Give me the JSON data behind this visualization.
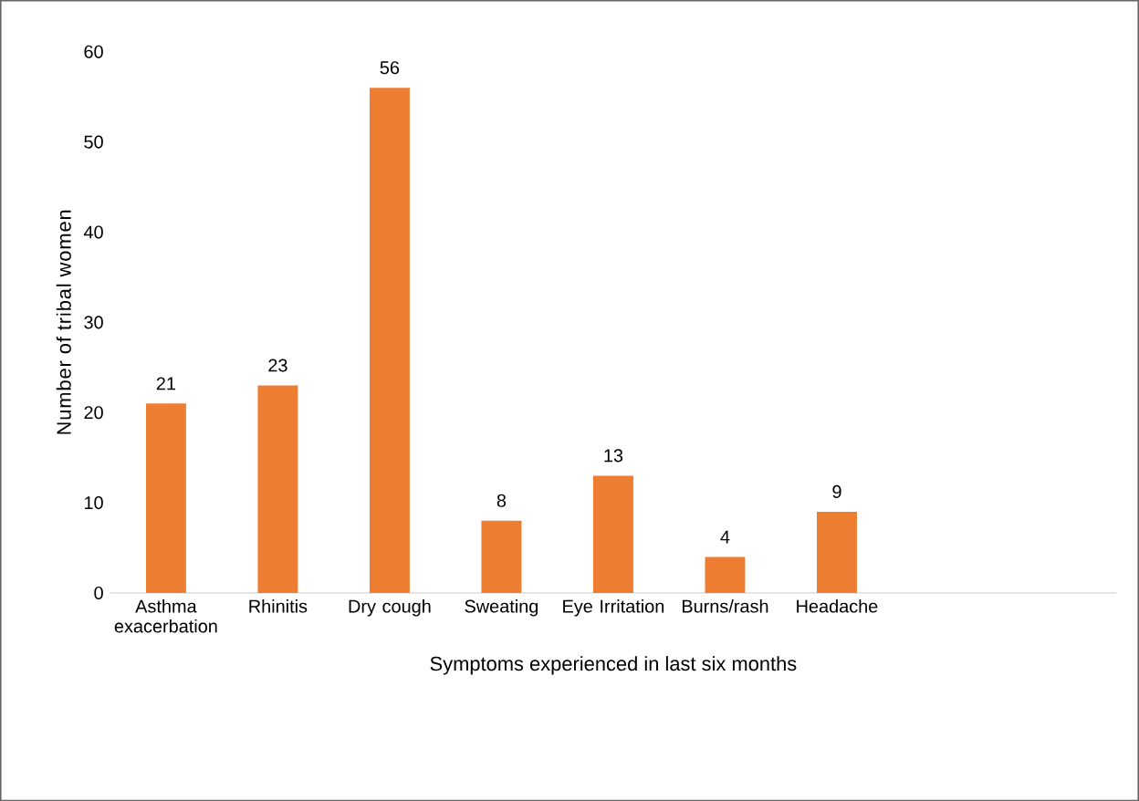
{
  "chart_data": {
    "type": "bar",
    "categories": [
      "Asthma exacerbation",
      "Rhinitis",
      "Dry cough",
      "Sweating",
      "Eye Irritation",
      "Burns/rash",
      "Headache",
      null,
      null
    ],
    "values": [
      21,
      23,
      56,
      8,
      13,
      4,
      9,
      null,
      null
    ],
    "color": "#ed7d31",
    "xlabel": "Symptoms experienced in last six months",
    "ylabel": "Number of tribal women",
    "ylim": [
      0,
      60
    ],
    "yticks": [
      0,
      10,
      20,
      30,
      40,
      50,
      60
    ],
    "data_labels": true
  }
}
